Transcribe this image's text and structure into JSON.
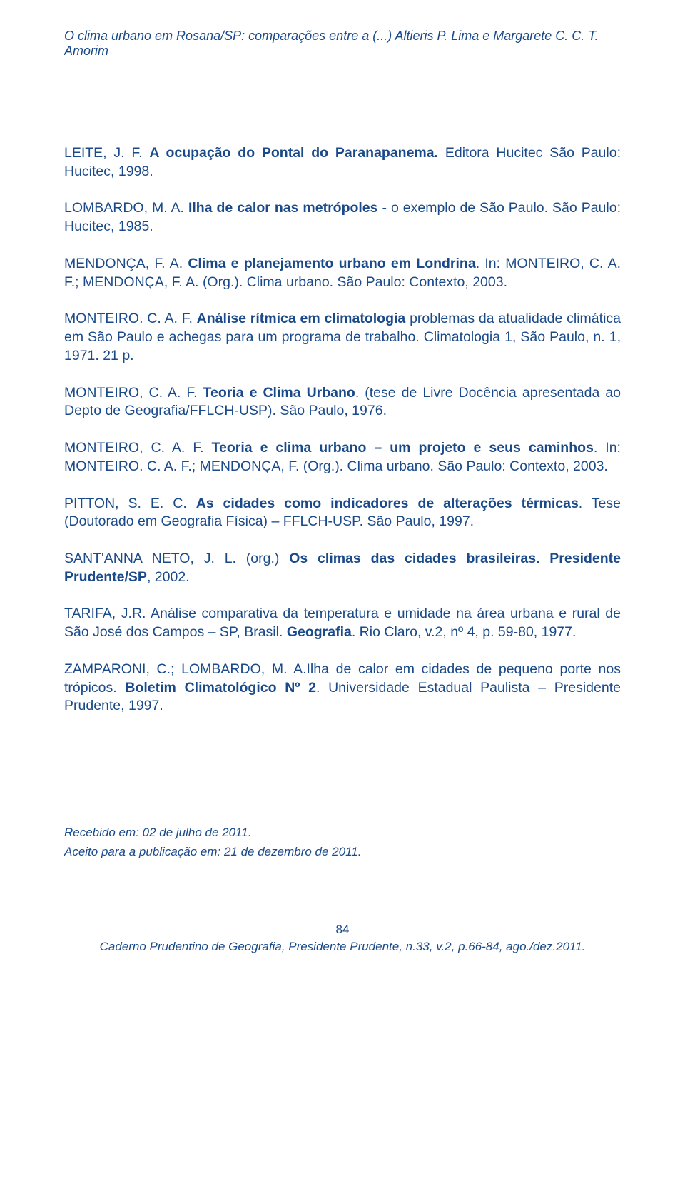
{
  "header": "O clima urbano em Rosana/SP: comparações entre a (...) Altieris P. Lima e Margarete C. C. T. Amorim",
  "references": [
    {
      "pre": "LEITE, J. F. ",
      "bold": "A ocupação do Pontal do Paranapanema.",
      "post": " Editora Hucitec São Paulo: Hucitec, 1998."
    },
    {
      "pre": "LOMBARDO, M. A. ",
      "bold": "Ilha de calor nas metrópoles",
      "post": " - o exemplo de São Paulo. São Paulo: Hucitec, 1985."
    },
    {
      "pre": "MENDONÇA, F. A. ",
      "bold": "Clima e planejamento urbano em Londrina",
      "post": ". In: MONTEIRO, C. A. F.; MENDONÇA, F. A. (Org.). Clima urbano. São Paulo: Contexto, 2003."
    },
    {
      "pre": "MONTEIRO. C. A. F. ",
      "bold": "Análise rítmica em climatologia",
      "post": " problemas da atualidade climática em São Paulo e achegas para um programa de trabalho. Climatologia 1, São Paulo, n. 1, 1971. 21 p."
    },
    {
      "pre": "MONTEIRO, C. A. F. ",
      "bold": "Teoria e Clima Urbano",
      "post": ". (tese de Livre Docência apresentada ao Depto de Geografia/FFLCH-USP). São Paulo, 1976."
    },
    {
      "pre": "MONTEIRO, C. A. F. ",
      "bold": "Teoria e clima urbano – um projeto e seus caminhos",
      "post": ". In: MONTEIRO. C. A. F.; MENDONÇA, F. (Org.). Clima urbano. São Paulo: Contexto, 2003."
    },
    {
      "pre": "PITTON, S. E. C. ",
      "bold": "As cidades como indicadores de alterações térmicas",
      "post": ". Tese (Doutorado em Geografia Física) – FFLCH-USP. São Paulo, 1997."
    },
    {
      "pre": "SANT'ANNA NETO, J. L. (org.) ",
      "bold": "Os climas das cidades brasileiras. Presidente Prudente/SP",
      "post": ", 2002."
    },
    {
      "pre": "TARIFA, J.R. Análise comparativa da temperatura e umidade na área urbana e rural de São José dos Campos – SP, Brasil. ",
      "bold": "Geografia",
      "post": ". Rio Claro, v.2, nº 4, p. 59-80, 1977."
    },
    {
      "pre": "ZAMPARONI, C.; LOMBARDO, M. A.Ilha de calor em cidades de pequeno porte nos trópicos. ",
      "bold": "Boletim Climatológico Nº 2",
      "post": ". Universidade Estadual Paulista – Presidente Prudente, 1997."
    }
  ],
  "received": "Recebido em: 02 de julho de 2011.",
  "accepted": "Aceito para a publicação em: 21 de dezembro de 2011.",
  "pageNumber": "84",
  "footer": "Caderno Prudentino de Geografia, Presidente Prudente, n.33, v.2, p.66-84, ago./dez.2011."
}
